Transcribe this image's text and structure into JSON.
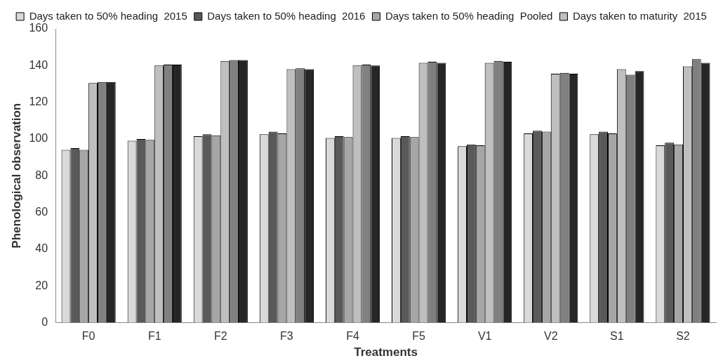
{
  "chart_data": {
    "type": "bar",
    "xlabel": "Treatments",
    "ylabel": "Phenological observation",
    "categories": [
      "F0",
      "F1",
      "F2",
      "F3",
      "F4",
      "F5",
      "V1",
      "V2",
      "S1",
      "S2"
    ],
    "series": [
      {
        "name": "Days taken to 50% heading  2015",
        "color": "#d9d9d9",
        "values": [
          94,
          99,
          101.5,
          102.5,
          100.5,
          100.5,
          96,
          103,
          102.5,
          96.5
        ]
      },
      {
        "name": "Days taken to 50% heading  2016",
        "color": "#595959",
        "values": [
          95,
          100,
          102.5,
          104,
          101.5,
          101.5,
          97,
          104.5,
          104,
          98
        ]
      },
      {
        "name": "Days taken to 50% heading  Pooled",
        "color": "#a6a6a6",
        "values": [
          94,
          99.5,
          102,
          103,
          101,
          101,
          96.5,
          104,
          103,
          97
        ]
      },
      {
        "name": "Days taken to maturity  2015",
        "color": "#bfbfbf",
        "values": [
          130.5,
          140,
          142.5,
          138,
          140,
          141.5,
          141.5,
          135.5,
          138,
          139.5
        ]
      },
      {
        "color": "#808080",
        "values": [
          131,
          140.5,
          143,
          138.5,
          140.5,
          142,
          142.5,
          136,
          135,
          143.5
        ]
      },
      {
        "color": "#262626",
        "values": [
          131,
          140.5,
          143,
          138,
          140,
          141.5,
          142,
          135.5,
          137,
          141.5
        ]
      }
    ],
    "ylim": [
      0,
      160
    ],
    "yticks": [
      0,
      20,
      40,
      60,
      80,
      100,
      120,
      140,
      160
    ],
    "grid": false,
    "legend": "top"
  }
}
